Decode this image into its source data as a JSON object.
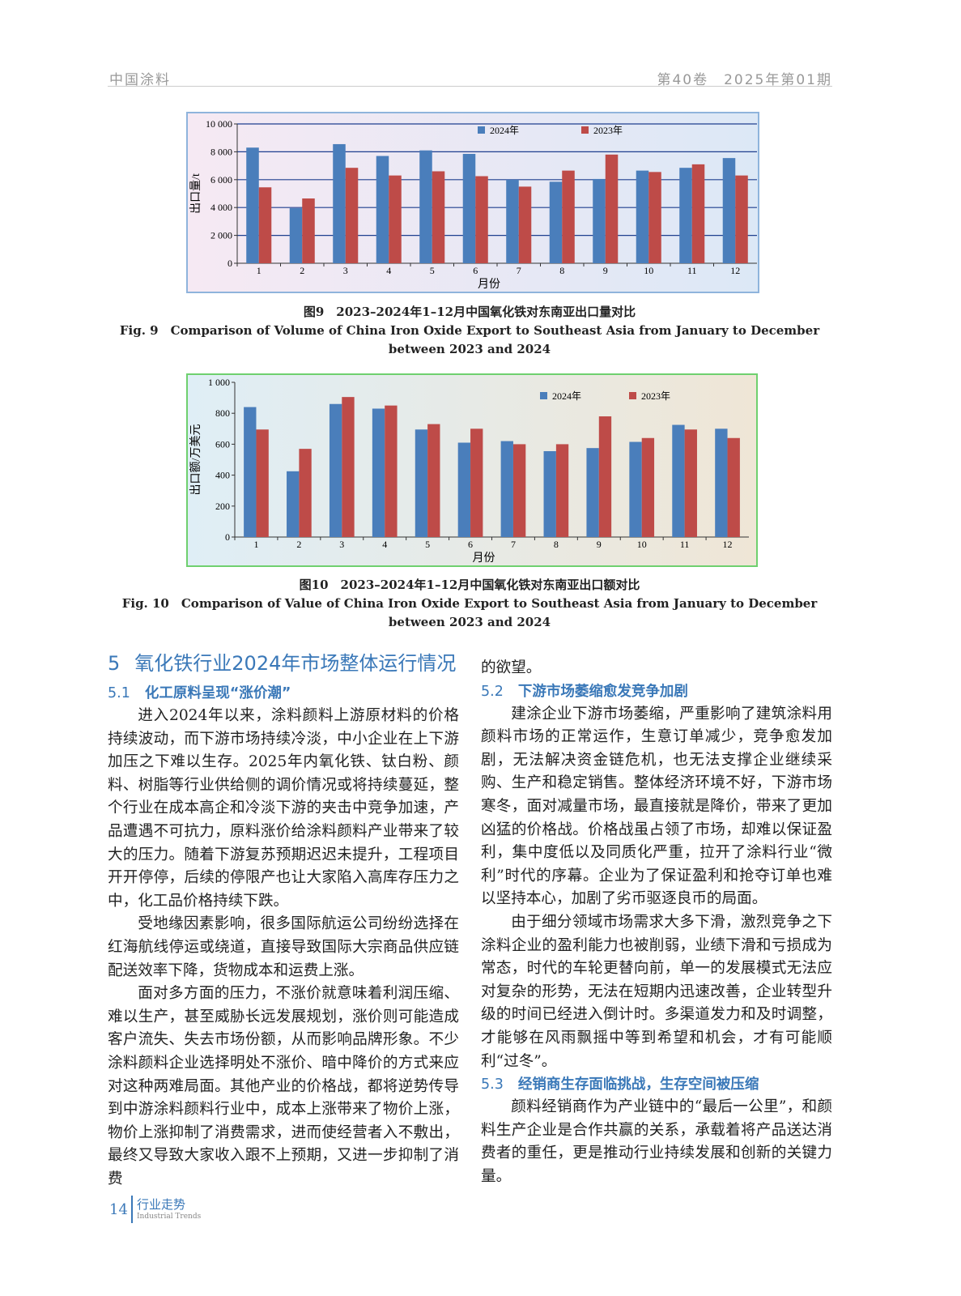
{
  "header": {
    "journal": "中国涂料",
    "issue": "第40卷　2025年第01期"
  },
  "chart_data": [
    {
      "type": "bar",
      "title_cn": "图9　2023–2024年1–12月中国氧化铁对东南亚出口量对比",
      "title_en": "Fig. 9　Comparison of Volume of China Iron Oxide Export to Southeast Asia from January to December between 2023 and 2024",
      "xlabel": "月份",
      "ylabel": "出口量/t",
      "categories": [
        "1",
        "2",
        "3",
        "4",
        "5",
        "6",
        "7",
        "8",
        "9",
        "10",
        "11",
        "12"
      ],
      "series": [
        {
          "name": "2024年",
          "color": "#4a7ebb",
          "values": [
            8300,
            3950,
            8550,
            7700,
            8100,
            7850,
            6000,
            5850,
            6050,
            6650,
            6850,
            7550
          ]
        },
        {
          "name": "2023年",
          "color": "#be4b48",
          "values": [
            5450,
            4650,
            6850,
            6300,
            6600,
            6250,
            5500,
            6650,
            7800,
            6550,
            7100,
            6300
          ]
        }
      ],
      "ylim": [
        0,
        10000
      ],
      "yticks": [
        0,
        {
          "value": 2000,
          "label": "2 000"
        },
        {
          "value": 4000,
          "label": "4 000"
        },
        {
          "value": 6000,
          "label": "6 000"
        },
        {
          "value": 8000,
          "label": "8 000"
        },
        {
          "value": 10000,
          "label": "10 000"
        }
      ],
      "grid": true
    },
    {
      "type": "bar",
      "title_cn": "图10　2023–2024年1–12月中国氧化铁对东南亚出口额对比",
      "title_en": "Fig. 10　Comparison of Value of China Iron Oxide Export to Southeast Asia from January to December between 2023 and 2024",
      "xlabel": "月份",
      "ylabel": "出口额/万美元",
      "categories": [
        "1",
        "2",
        "3",
        "4",
        "5",
        "6",
        "7",
        "8",
        "9",
        "10",
        "11",
        "12"
      ],
      "series": [
        {
          "name": "2024年",
          "color": "#4a7ebb",
          "values": [
            840,
            425,
            860,
            830,
            695,
            610,
            620,
            555,
            575,
            615,
            725,
            700
          ]
        },
        {
          "name": "2023年",
          "color": "#be4b48",
          "values": [
            695,
            570,
            905,
            850,
            730,
            700,
            600,
            600,
            780,
            640,
            695,
            640
          ]
        }
      ],
      "ylim": [
        0,
        1000
      ],
      "yticks": [
        0,
        200,
        400,
        600,
        800,
        {
          "value": 1000,
          "label": "1 000"
        }
      ],
      "grid": false
    }
  ],
  "section": {
    "number": "5",
    "title": "氧化铁行业2024年市场整体运行情况"
  },
  "subsections": [
    {
      "number": "5.1",
      "title": "化工原料呈现“涨价潮”",
      "paragraphs": [
        "进入2024年以来，涂料颜料上游原材料的价格持续波动，而下游市场持续冷淡，中小企业在上下游加压之下难以生存。2025年内氧化铁、钛白粉、颜料、树脂等行业供给侧的调价情况或将持续蔓延，整个行业在成本高企和冷淡下游的夹击中竞争加速，产品遭遇不可抗力，原料涨价给涂料颜料产业带来了较大的压力。随着下游复苏预期迟迟未提升，工程项目开开停停，后续的停限产也让大家陷入高库存压力之中，化工品价格持续下跌。",
        "受地缘因素影响，很多国际航运公司纷纷选择在红海航线停运或绕道，直接导致国际大宗商品供应链配送效率下降，货物成本和运费上涨。",
        "面对多方面的压力，不涨价就意味着利润压缩、难以生产，甚至威胁长远发展规划，涨价则可能造成客户流失、失去市场份额，从而影响品牌形象。不少涂料颜料企业选择明处不涨价、暗中降价的方式来应对这种两难局面。其他产业的价格战，都将逆势传导到中游涂料颜料行业中，成本上涨带来了物价上涨，物价上涨抑制了消费需求，进而使经营者入不敷出，最终又导致大家收入跟不上预期，又进一步抑制了消费",
        "的欲望。"
      ]
    },
    {
      "number": "5.2",
      "title": "下游市场萎缩愈发竞争加剧",
      "paragraphs": [
        "建涂企业下游市场萎缩，严重影响了建筑涂料用颜料市场的正常运作，生意订单减少，竞争愈发加剧，无法解决资金链危机，也无法支撑企业继续采购、生产和稳定销售。整体经济环境不好，下游市场寒冬，面对减量市场，最直接就是降价，带来了更加凶猛的价格战。价格战虽占领了市场，却难以保证盈利，集中度低以及同质化严重，拉开了涂料行业“微利”时代的序幕。企业为了保证盈利和抢夺订单也难以坚持本心，加剧了劣币驱逐良币的局面。",
        "由于细分领域市场需求大多下滑，激烈竞争之下涂料企业的盈利能力也被削弱，业绩下滑和亏损成为常态，时代的车轮更替向前，单一的发展模式无法应对复杂的形势，无法在短期内迅速改善，企业转型升级的时间已经进入倒计时。多渠道发力和及时调整，才能够在风雨飘摇中等到希望和机会，才有可能顺利“过冬”。"
      ]
    },
    {
      "number": "5.3",
      "title": "经销商生存面临挑战，生存空间被压缩",
      "paragraphs": [
        "颜料经销商作为产业链中的“最后一公里”，和颜料生产企业是合作共赢的关系，承载着将产品送达消费者的重任，更是推动行业持续发展和创新的关键力量。"
      ]
    }
  ],
  "footer": {
    "page": "14",
    "column_cn": "行业走势",
    "column_en": "Industrial Trends"
  }
}
